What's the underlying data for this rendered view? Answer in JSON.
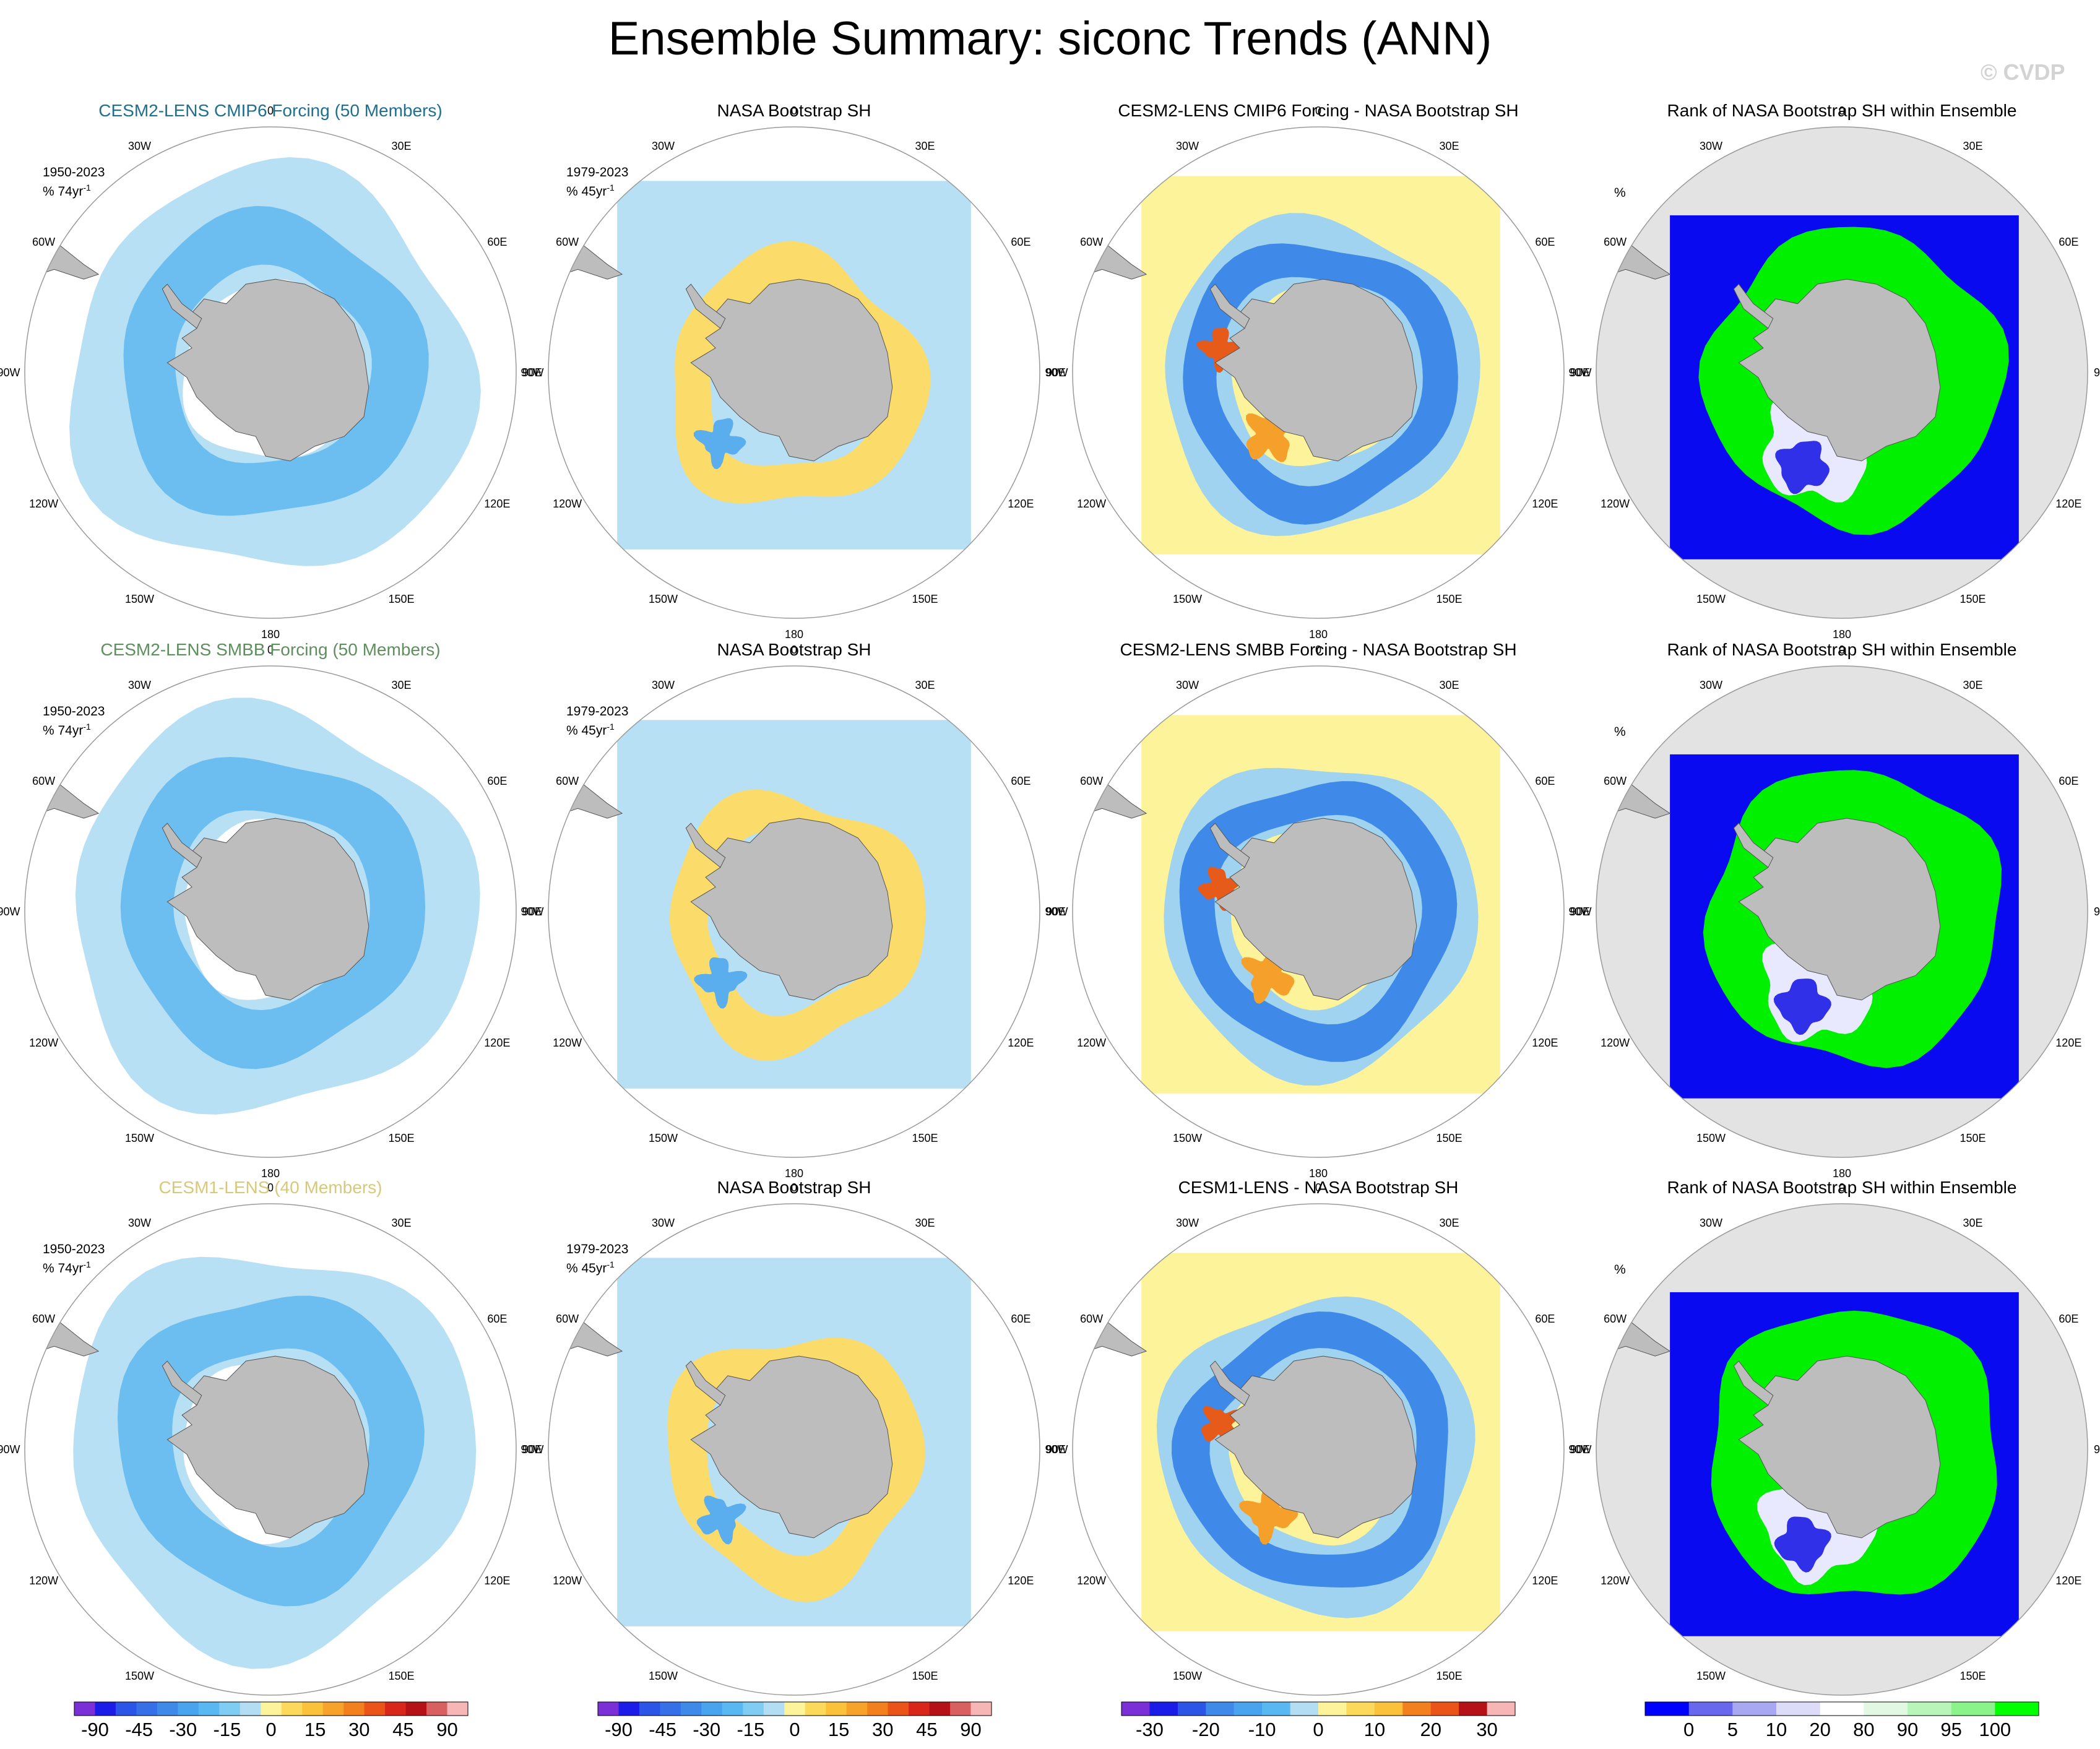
{
  "title": "Ensemble Summary: siconc Trends (ANN)",
  "watermark": "© CVDP",
  "longitude_labels": [
    "0",
    "30E",
    "60E",
    "90E",
    "120E",
    "150E",
    "180",
    "150W",
    "120W",
    "90W",
    "60W",
    "30W"
  ],
  "rows": [
    {
      "panels": [
        {
          "title": "CESM2-LENS CMIP6 Forcing (50 Members)",
          "type": "model",
          "period": "1950-2023",
          "units": "% 74yr",
          "units_sup": "-1"
        },
        {
          "title": "NASA Bootstrap SH",
          "type": "obs",
          "period": "1979-2023",
          "units": "% 45yr",
          "units_sup": "-1"
        },
        {
          "title": "CESM2-LENS CMIP6 Forcing - NASA Bootstrap SH",
          "type": "diff"
        },
        {
          "title": "Rank of NASA Bootstrap SH within Ensemble",
          "type": "rank",
          "units": "%"
        }
      ]
    },
    {
      "panels": [
        {
          "title": "CESM2-LENS SMBB Forcing (50 Members)",
          "type": "model",
          "period": "1950-2023",
          "units": "% 74yr",
          "units_sup": "-1"
        },
        {
          "title": "NASA Bootstrap SH",
          "type": "obs",
          "period": "1979-2023",
          "units": "% 45yr",
          "units_sup": "-1"
        },
        {
          "title": "CESM2-LENS SMBB Forcing - NASA Bootstrap SH",
          "type": "diff"
        },
        {
          "title": "Rank of NASA Bootstrap SH within Ensemble",
          "type": "rank",
          "units": "%"
        }
      ]
    },
    {
      "panels": [
        {
          "title": "CESM1-LENS (40 Members)",
          "type": "model",
          "period": "1950-2023",
          "units": "% 74yr",
          "units_sup": "-1"
        },
        {
          "title": "NASA Bootstrap SH",
          "type": "obs",
          "period": "1979-2023",
          "units": "% 45yr",
          "units_sup": "-1"
        },
        {
          "title": "CESM1-LENS - NASA Bootstrap SH",
          "type": "diff"
        },
        {
          "title": "Rank of NASA Bootstrap SH within Ensemble",
          "type": "rank",
          "units": "%"
        }
      ]
    }
  ],
  "colorbars": [
    {
      "name": "trend",
      "labels": [
        "-90",
        "-45",
        "-30",
        "-15",
        "0",
        "15",
        "30",
        "45",
        "90"
      ],
      "colors": [
        "#7b2fd6",
        "#1c1ce8",
        "#2b55e6",
        "#3670e8",
        "#3f8ae8",
        "#4aa3ee",
        "#59b8f2",
        "#7fcdf5",
        "#b3ddf2",
        "#fdf39a",
        "#fcd95a",
        "#fbc13a",
        "#f7a22a",
        "#f2801f",
        "#ea5418",
        "#d8261a",
        "#b51218",
        "#d96060",
        "#f7b5b5"
      ]
    },
    {
      "name": "trend",
      "labels": [
        "-90",
        "-45",
        "-30",
        "-15",
        "0",
        "15",
        "30",
        "45",
        "90"
      ],
      "colors": [
        "#7b2fd6",
        "#1c1ce8",
        "#2b55e6",
        "#3670e8",
        "#3f8ae8",
        "#4aa3ee",
        "#59b8f2",
        "#7fcdf5",
        "#b3ddf2",
        "#fdf39a",
        "#fcd95a",
        "#fbc13a",
        "#f7a22a",
        "#f2801f",
        "#ea5418",
        "#d8261a",
        "#b51218",
        "#d96060",
        "#f7b5b5"
      ]
    },
    {
      "name": "diff",
      "labels": [
        "-30",
        "-20",
        "-10",
        "0",
        "10",
        "20",
        "30"
      ],
      "colors": [
        "#7b2fd6",
        "#1c1ce8",
        "#2b55e6",
        "#3f8ae8",
        "#4aa3ee",
        "#59b8f2",
        "#b3ddf2",
        "#fdf39a",
        "#fcd95a",
        "#fbc13a",
        "#f2801f",
        "#ea5418",
        "#b51218",
        "#f7b5b5"
      ]
    },
    {
      "name": "rank",
      "labels": [
        "0",
        "5",
        "10",
        "20",
        "80",
        "90",
        "95",
        "100"
      ],
      "colors": [
        "#0000ff",
        "#6868ee",
        "#a8a8f2",
        "#dcdcf8",
        "#ffffff",
        "#e2f8e2",
        "#b8f5b8",
        "#8af38a",
        "#00ff00"
      ]
    }
  ],
  "chart_data": [
    {
      "type": "heatmap",
      "title": "Ensemble Summary: siconc Trends (ANN)",
      "projection": "south polar stereographic",
      "variable": "siconc trend",
      "units": "% per period",
      "colorbar_levels": [
        -90,
        -45,
        -30,
        -15,
        0,
        15,
        30,
        45,
        90
      ]
    },
    {
      "type": "heatmap",
      "title": "Rank of NASA Bootstrap SH within Ensemble",
      "units": "%",
      "colorbar_levels": [
        0,
        5,
        10,
        20,
        80,
        90,
        95,
        100
      ]
    }
  ],
  "colors": {
    "land": "#bdbdbd",
    "rank_ocean": "#e3e3e3",
    "circle": "#9a9a9a"
  }
}
